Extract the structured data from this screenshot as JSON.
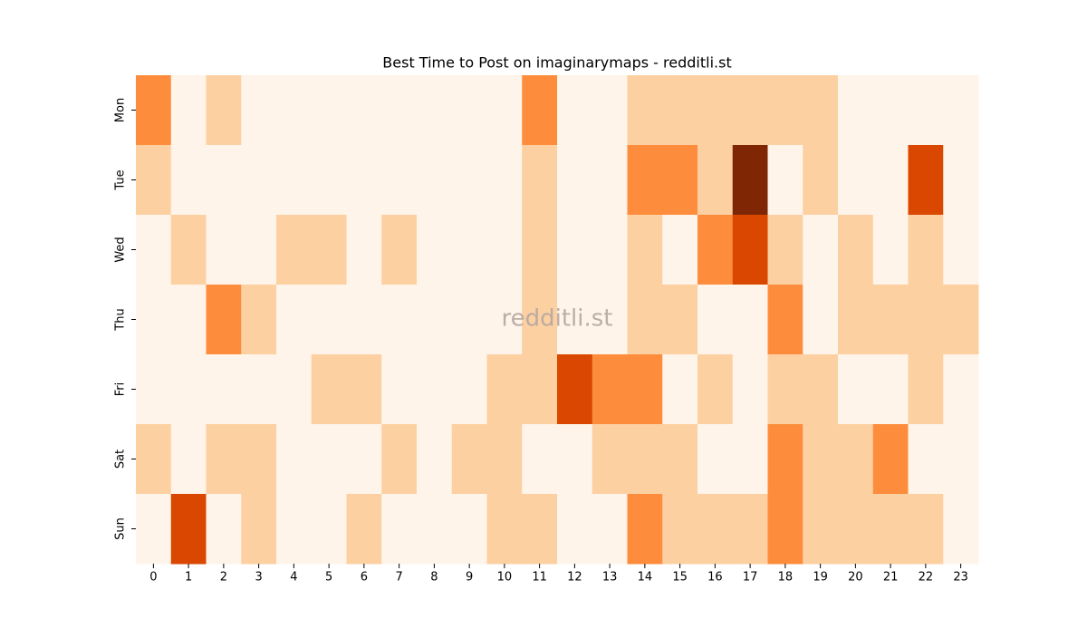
{
  "chart_data": {
    "type": "heatmap",
    "title": "Best Time to Post on imaginarymaps - redditli.st",
    "watermark": "redditli.st",
    "x_categories": [
      "0",
      "1",
      "2",
      "3",
      "4",
      "5",
      "6",
      "7",
      "8",
      "9",
      "10",
      "11",
      "12",
      "13",
      "14",
      "15",
      "16",
      "17",
      "18",
      "19",
      "20",
      "21",
      "22",
      "23"
    ],
    "y_categories": [
      "Mon",
      "Tue",
      "Wed",
      "Thu",
      "Fri",
      "Sat",
      "Sun"
    ],
    "values": [
      [
        2,
        0,
        1,
        0,
        0,
        0,
        0,
        0,
        0,
        0,
        0,
        2,
        0,
        0,
        1,
        1,
        1,
        1,
        1,
        1,
        0,
        0,
        0,
        0
      ],
      [
        1,
        0,
        0,
        0,
        0,
        0,
        0,
        0,
        0,
        0,
        0,
        1,
        0,
        0,
        2,
        2,
        1,
        4,
        0,
        1,
        0,
        0,
        3,
        0
      ],
      [
        0,
        1,
        0,
        0,
        1,
        1,
        0,
        1,
        0,
        0,
        0,
        1,
        0,
        0,
        1,
        0,
        2,
        3,
        1,
        0,
        1,
        0,
        1,
        0
      ],
      [
        0,
        0,
        2,
        1,
        0,
        0,
        0,
        0,
        0,
        0,
        0,
        1,
        0,
        0,
        1,
        1,
        0,
        0,
        2,
        0,
        1,
        1,
        1,
        1
      ],
      [
        0,
        0,
        0,
        0,
        0,
        1,
        1,
        0,
        0,
        0,
        1,
        1,
        3,
        2,
        2,
        0,
        1,
        0,
        1,
        1,
        0,
        0,
        1,
        0
      ],
      [
        1,
        0,
        1,
        1,
        0,
        0,
        0,
        1,
        0,
        1,
        1,
        0,
        0,
        1,
        1,
        1,
        0,
        0,
        2,
        1,
        1,
        2,
        0,
        0
      ],
      [
        0,
        3,
        0,
        1,
        0,
        0,
        1,
        0,
        0,
        0,
        1,
        1,
        0,
        0,
        2,
        1,
        1,
        1,
        2,
        1,
        1,
        1,
        1,
        0
      ]
    ],
    "colors": [
      "#fef4e9",
      "#fdd0a2",
      "#fd8d3c",
      "#d94701",
      "#7f2704"
    ]
  }
}
